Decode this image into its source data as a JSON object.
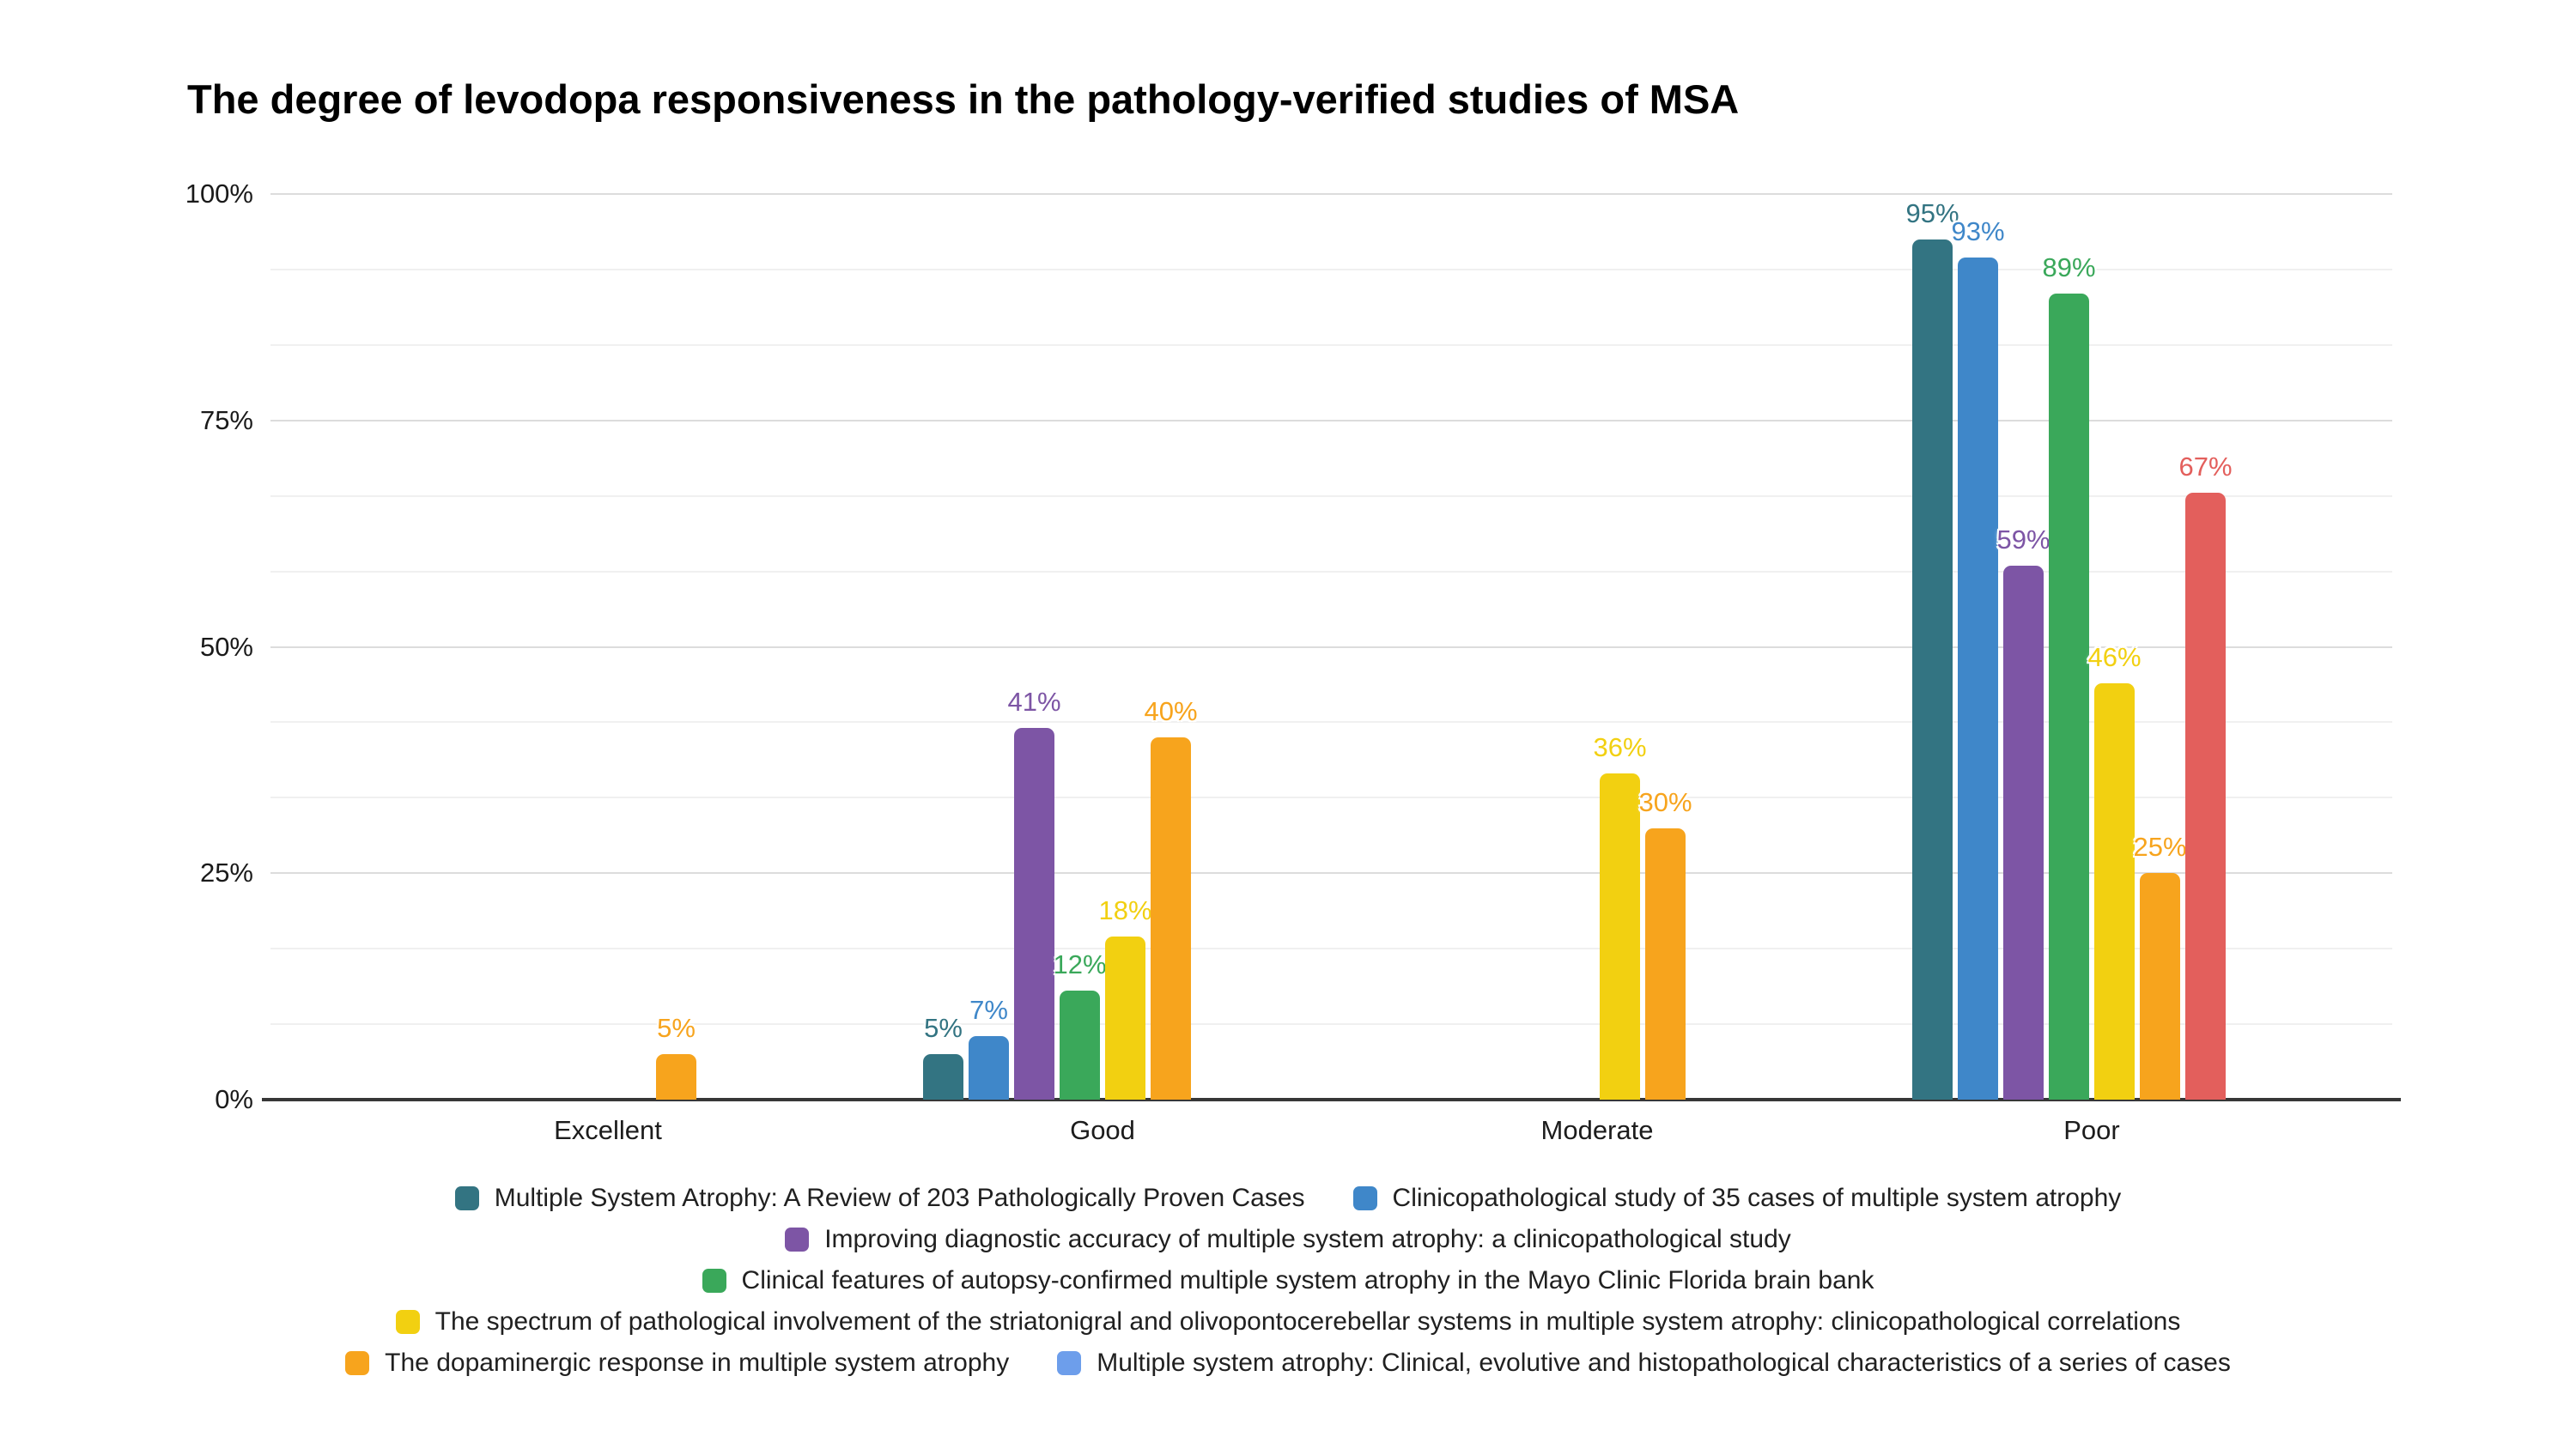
{
  "page": {
    "background": "#ffffff"
  },
  "chart_data": {
    "type": "bar",
    "title": "The degree of levodopa responsiveness in the pathology-verified studies of MSA",
    "categories": [
      "Excellent",
      "Good",
      "Moderate",
      "Poor"
    ],
    "y_axis": {
      "tick_values": [
        0,
        25,
        50,
        75,
        100
      ],
      "tick_suffix": "%",
      "min": 0,
      "max": 100,
      "minor_gridlines_per_major": 2
    },
    "value_label_suffix": "%",
    "series": [
      {
        "name": "Multiple System Atrophy: A Review of 203 Pathologically Proven Cases",
        "color": "#337482",
        "in_legend": true,
        "values": [
          null,
          5,
          null,
          95
        ]
      },
      {
        "name": "Clinicopathological study of 35 cases of multiple system atrophy",
        "color": "#3F87C9",
        "in_legend": true,
        "values": [
          null,
          7,
          null,
          93
        ]
      },
      {
        "name": "Improving diagnostic accuracy of multiple system atrophy: a clinicopathological study",
        "color": "#7D55A5",
        "in_legend": true,
        "values": [
          null,
          41,
          null,
          59
        ]
      },
      {
        "name": "Clinical features of autopsy-confirmed multiple system atrophy in the Mayo Clinic Florida brain bank",
        "color": "#3AA85A",
        "in_legend": true,
        "values": [
          null,
          12,
          null,
          89
        ]
      },
      {
        "name": "The spectrum of pathological involvement of the striatonigral and olivopontocerebellar systems in multiple system atrophy: clinicopathological correlations",
        "color": "#F2D011",
        "in_legend": true,
        "values": [
          null,
          18,
          36,
          46
        ]
      },
      {
        "name": "The dopaminergic response in multiple system atrophy",
        "color": "#F7A41D",
        "in_legend": true,
        "values": [
          5,
          40,
          30,
          25
        ]
      },
      {
        "name": "",
        "color": "#E35F5C",
        "in_legend": false,
        "values": [
          null,
          null,
          null,
          67
        ]
      },
      {
        "name": "Multiple system atrophy: Clinical, evolutive and histopathological characteristics of a series of cases",
        "color": "#6D9EEB",
        "in_legend": true,
        "values": [
          null,
          null,
          null,
          null
        ]
      }
    ],
    "legend_rows": [
      [
        0,
        1
      ],
      [
        2
      ],
      [
        3
      ],
      [
        4
      ],
      [
        5,
        7
      ]
    ],
    "legend_position": "bottom",
    "grid": true
  },
  "colors": {
    "title": "#000000",
    "axis_label": "#1a1a1a",
    "axis_baseline": "#373737",
    "major_gridline": "#dcdcdc",
    "minor_gridline": "#f0f0f0",
    "legend_text": "#202020",
    "background": "#ffffff"
  }
}
